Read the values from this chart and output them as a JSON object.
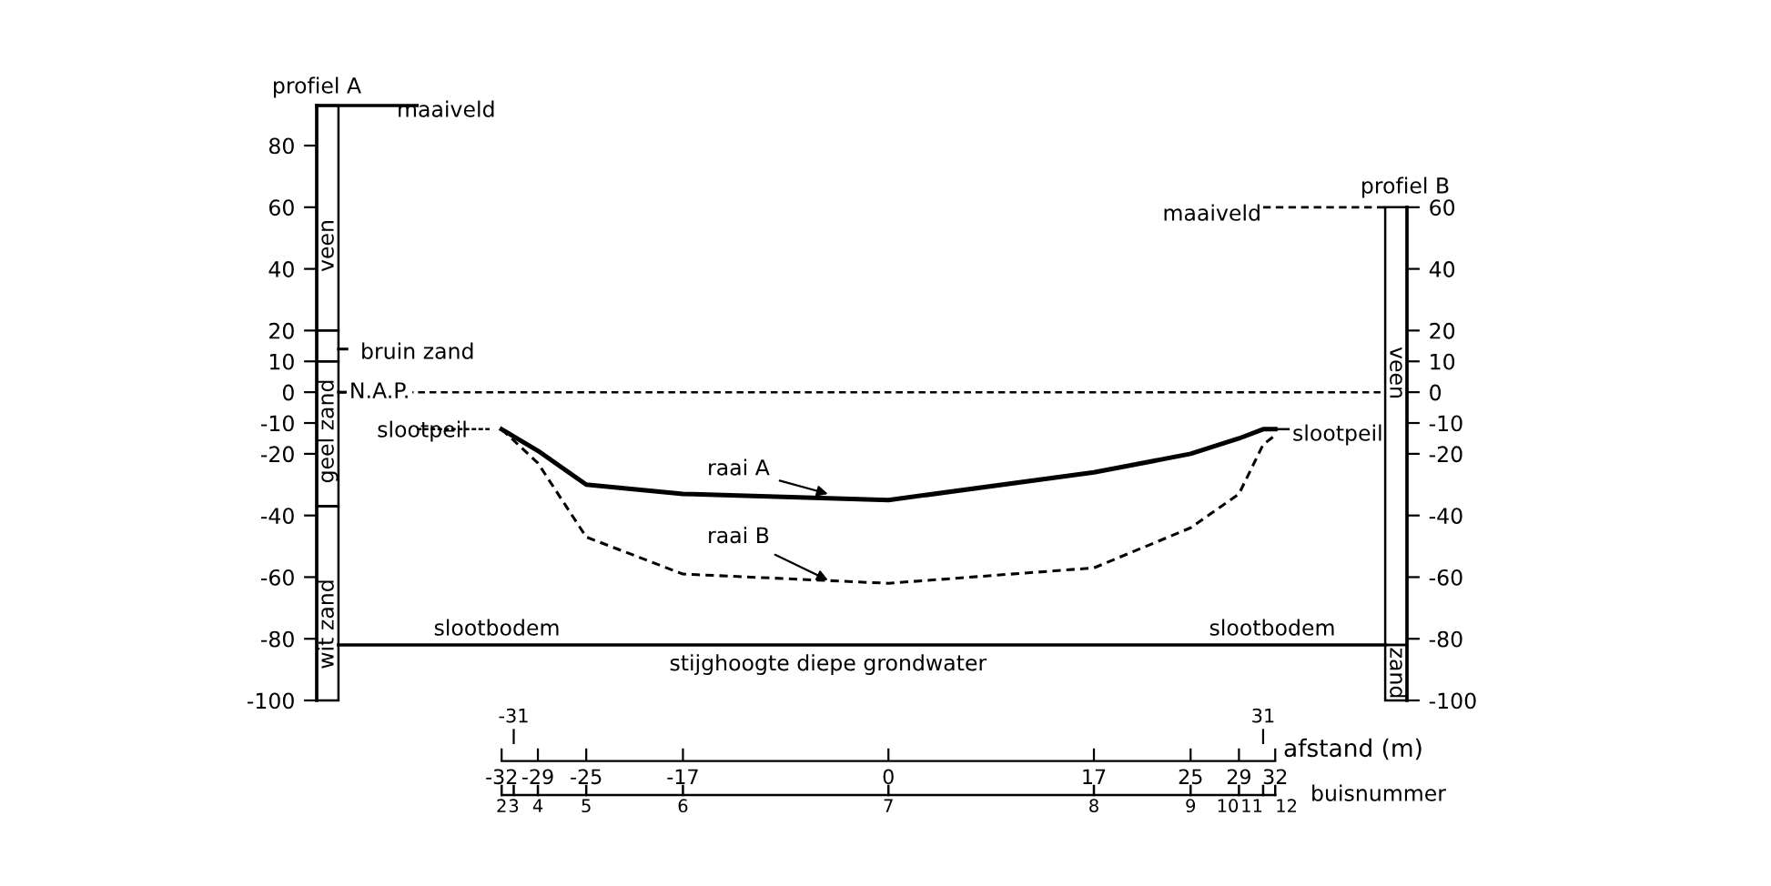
{
  "chart_data": {
    "type": "line",
    "xlabel": "afstand (m)",
    "xlim": [
      -47.3,
      42.9
    ],
    "ylim": [
      -100,
      93
    ],
    "y2lim": [
      -100,
      60
    ],
    "x2lim": [
      -47.3,
      42.9
    ],
    "xticks": [
      -32,
      -29,
      -25,
      -17,
      0,
      17,
      25,
      29,
      32
    ],
    "x2ticks": [
      -31,
      31
    ],
    "yticks": [
      80,
      60,
      40,
      20,
      10,
      0,
      -10,
      -20,
      -40,
      -60,
      -80,
      -100
    ],
    "y2ticks": [
      60,
      40,
      20,
      10,
      0,
      -10,
      -20,
      -40,
      -60,
      -80,
      -100
    ],
    "series": [
      {
        "name": "raai A",
        "color": "#000000",
        "line_style": "solid",
        "x": [
          -32,
          -29,
          -25,
          -17,
          0,
          17,
          25,
          29,
          31,
          32
        ],
        "values": [
          -12,
          -19,
          -30,
          -33,
          -35,
          -26,
          -20,
          -15,
          -12,
          -12
        ]
      },
      {
        "name": "raai B",
        "color": "#000000",
        "line_style": "dashed",
        "x": [
          -32,
          -29,
          -25,
          -17,
          0,
          17,
          25,
          29,
          31,
          32
        ],
        "values": [
          -12,
          -23,
          -47,
          -59,
          -62,
          -57,
          -44,
          -33,
          -17,
          -14
        ]
      }
    ],
    "ref_lines": [
      {
        "axis": "y",
        "value": 0,
        "label": "N.A.P.",
        "line_style": "dashed",
        "color": "#000000"
      },
      {
        "axis": "y",
        "value": -82,
        "label": "stijghoogte diepe grondwater",
        "line_style": "solid",
        "color": "#000000"
      }
    ],
    "annotations": [
      "profiel A",
      "maaiveld",
      "profiel B",
      "maaiveld",
      "bruin zand",
      "veen",
      "geel zand",
      "wit zand",
      "veen",
      "zand",
      "slootpeil",
      "slootpeil",
      "slootbodem",
      "slootbodem",
      "buisnummer",
      "2",
      "3",
      "4",
      "5",
      "6",
      "7",
      "8",
      "9",
      "10",
      "11",
      "12"
    ]
  }
}
